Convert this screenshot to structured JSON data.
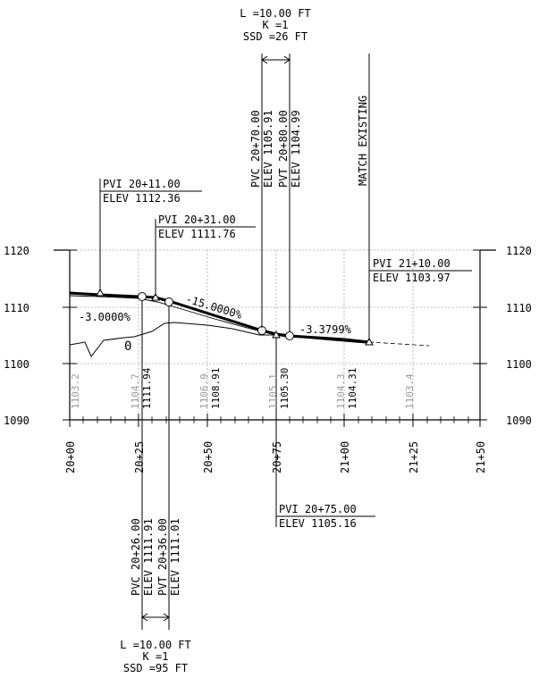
{
  "top_curve": {
    "length": "L =10.00 FT",
    "k": "K =1",
    "ssd": "SSD =26 FT",
    "pvc_sta": "PVC 20+70.00",
    "pvc_elev": "ELEV 1105.91",
    "pvt_sta": "PVT 20+80.00",
    "pvt_elev": "ELEV 1104.99"
  },
  "match_existing": "MATCH EXISTING",
  "pvi_labels": {
    "pvi1_sta": "PVI 20+11.00",
    "pvi1_elev": "ELEV 1112.36",
    "pvi2_sta": "PVI 20+31.00",
    "pvi2_elev": "ELEV 1111.76",
    "pvi3_sta": "PVI 21+10.00",
    "pvi3_elev": "ELEV 1103.97",
    "pvi4_sta": "PVI 20+75.00",
    "pvi4_elev": "ELEV 1105.16"
  },
  "bottom_curve": {
    "pvc_sta": "PVC 20+26.00",
    "pvc_elev": "ELEV 1111.91",
    "pvt_sta": "PVT 20+36.00",
    "pvt_elev": "ELEV 1111.01",
    "length": "L =10.00 FT",
    "k": "K =1",
    "ssd": "SSD =95 FT"
  },
  "grades": {
    "g1": "-3.0000%",
    "g2": "-15.0000%",
    "g3": "-3.3799%"
  },
  "marker_zero": "0",
  "y_axis_left": [
    "1120",
    "1110",
    "1100",
    "1090"
  ],
  "y_axis_right": [
    "1120",
    "1110",
    "1100",
    "1090"
  ],
  "x_axis": [
    "20+00",
    "20+25",
    "20+50",
    "20+75",
    "21+00",
    "21+25",
    "21+50"
  ],
  "existing_elev_labels": [
    "1103.2",
    "1104.7",
    "1106.9",
    "1105.1",
    "1104.3",
    "1103.4"
  ],
  "proposed_elev_labels": [
    "1111.94",
    "1108.91",
    "1105.30",
    "1104.31"
  ],
  "colors": {
    "line": "#000000",
    "grid": "#aaaaaa",
    "existing_text": "#999999"
  }
}
